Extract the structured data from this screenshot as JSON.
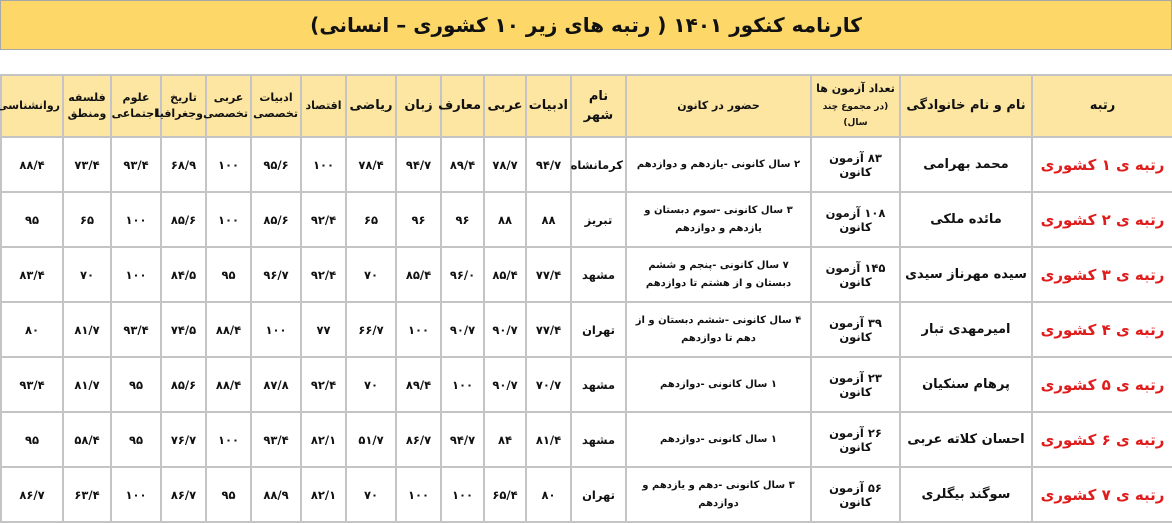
{
  "title": "کارنامه کنکور ۱۴۰۱ ( رتبه های زیر ۱۰ کشوری – انسانی)",
  "headers": {
    "rank": "رتبه",
    "name": "نام و نام خانوادگی",
    "exams": "تعداد  آزمون ها",
    "exams_note": "(در مجموع چند سال)",
    "attendance": "حضور در کانون",
    "city": "نام شهر",
    "adabiat": "ادبیات",
    "arabi": "عربی",
    "maaref": "معارف",
    "zaban": "زبان",
    "riazi": "ریاضی",
    "eghtesad": "اقتصاد",
    "adabiat_takhasosi": "ادبیات تخصصی",
    "arabi_takhasosi": "عربی تخصصی",
    "tarikh": "تاریخ وجغرافیا",
    "oloom": "علوم اجتماعی",
    "falsafe": "فلسفه ومنطق",
    "ravan": "روانشناسی"
  },
  "rows": [
    {
      "rank": "رتبه ی ۱ کشوری",
      "name": "محمد بهرامی",
      "exams": "۸۳ آزمون کانون",
      "attendance": "۲ سال کانونی -یازدهم و دوازدهم",
      "city": "کرمانشاه",
      "adabiat": "۹۴/۷",
      "arabi": "۷۸/۷",
      "maaref": "۸۹/۴",
      "zaban": "۹۴/۷",
      "riazi": "۷۸/۴",
      "eghtesad": "۱۰۰",
      "adabiat_takhasosi": "۹۵/۶",
      "arabi_takhasosi": "۱۰۰",
      "tarikh": "۶۸/۹",
      "oloom": "۹۳/۴",
      "falsafe": "۷۳/۴",
      "ravan": "۸۸/۴"
    },
    {
      "rank": "رتبه ی ۲ کشوری",
      "name": "مائده ملکی",
      "exams": "۱۰۸ آزمون کانون",
      "attendance": "۳ سال کانونی -سوم دبستان و یازدهم و دوازدهم",
      "city": "تبریز",
      "adabiat": "۸۸",
      "arabi": "۸۸",
      "maaref": "۹۶",
      "zaban": "۹۶",
      "riazi": "۶۵",
      "eghtesad": "۹۲/۴",
      "adabiat_takhasosi": "۸۵/۶",
      "arabi_takhasosi": "۱۰۰",
      "tarikh": "۸۵/۶",
      "oloom": "۱۰۰",
      "falsafe": "۶۵",
      "ravan": "۹۵"
    },
    {
      "rank": "رتبه ی ۳ کشوری",
      "name": "سیده مهرناز سیدی",
      "exams": "۱۴۵ آزمون کانون",
      "attendance": "۷ سال کانونی -پنجم و ششم دبستان و از هشتم تا دوازدهم",
      "city": "مشهد",
      "adabiat": "۷۷/۴",
      "arabi": "۸۵/۴",
      "maaref": "۹۶/۰",
      "zaban": "۸۵/۴",
      "riazi": "۷۰",
      "eghtesad": "۹۲/۴",
      "adabiat_takhasosi": "۹۶/۷",
      "arabi_takhasosi": "۹۵",
      "tarikh": "۸۴/۵",
      "oloom": "۱۰۰",
      "falsafe": "۷۰",
      "ravan": "۸۳/۴"
    },
    {
      "rank": "رتبه ی ۴ کشوری",
      "name": "امیرمهدی تبار",
      "exams": "۳۹ آزمون کانون",
      "attendance": "۴ سال کانونی -ششم دبستان و از دهم تا دوازدهم",
      "city": "تهران",
      "adabiat": "۷۷/۴",
      "arabi": "۹۰/۷",
      "maaref": "۹۰/۷",
      "zaban": "۱۰۰",
      "riazi": "۶۶/۷",
      "eghtesad": "۷۷",
      "adabiat_takhasosi": "۱۰۰",
      "arabi_takhasosi": "۸۸/۴",
      "tarikh": "۷۴/۵",
      "oloom": "۹۳/۴",
      "falsafe": "۸۱/۷",
      "ravan": "۸۰"
    },
    {
      "rank": "رتبه ی ۵ کشوری",
      "name": "پرهام سنکیان",
      "exams": "۲۳ آزمون کانون",
      "attendance": "۱ سال کانونی -دوازدهم",
      "city": "مشهد",
      "adabiat": "۷۰/۷",
      "arabi": "۹۰/۷",
      "maaref": "۱۰۰",
      "zaban": "۸۹/۴",
      "riazi": "۷۰",
      "eghtesad": "۹۲/۴",
      "adabiat_takhasosi": "۸۷/۸",
      "arabi_takhasosi": "۸۸/۴",
      "tarikh": "۸۵/۶",
      "oloom": "۹۵",
      "falsafe": "۸۱/۷",
      "ravan": "۹۳/۴"
    },
    {
      "rank": "رتبه ی ۶ کشوری",
      "name": "احسان کلاته عربی",
      "exams": "۲۶ آزمون کانون",
      "attendance": "۱ سال کانونی -دوازدهم",
      "city": "مشهد",
      "adabiat": "۸۱/۴",
      "arabi": "۸۴",
      "maaref": "۹۴/۷",
      "zaban": "۸۶/۷",
      "riazi": "۵۱/۷",
      "eghtesad": "۸۲/۱",
      "adabiat_takhasosi": "۹۳/۴",
      "arabi_takhasosi": "۱۰۰",
      "tarikh": "۷۶/۷",
      "oloom": "۹۵",
      "falsafe": "۵۸/۴",
      "ravan": "۹۵"
    },
    {
      "rank": "رتبه ی ۷ کشوری",
      "name": "سوگند بیگلری",
      "exams": "۵۶ آزمون کانون",
      "attendance": "۳ سال کانونی -دهم و یازدهم و دوازدهم",
      "city": "تهران",
      "adabiat": "۸۰",
      "arabi": "۶۵/۴",
      "maaref": "۱۰۰",
      "zaban": "۱۰۰",
      "riazi": "۷۰",
      "eghtesad": "۸۲/۱",
      "adabiat_takhasosi": "۸۸/۹",
      "arabi_takhasosi": "۹۵",
      "tarikh": "۸۶/۷",
      "oloom": "۱۰۰",
      "falsafe": "۶۳/۴",
      "ravan": "۸۶/۷"
    }
  ],
  "colors": {
    "title_bg": "#fdd868",
    "header_bg": "#fde6a2",
    "rank_text": "#e01b1b",
    "border": "#c4c4c4"
  }
}
